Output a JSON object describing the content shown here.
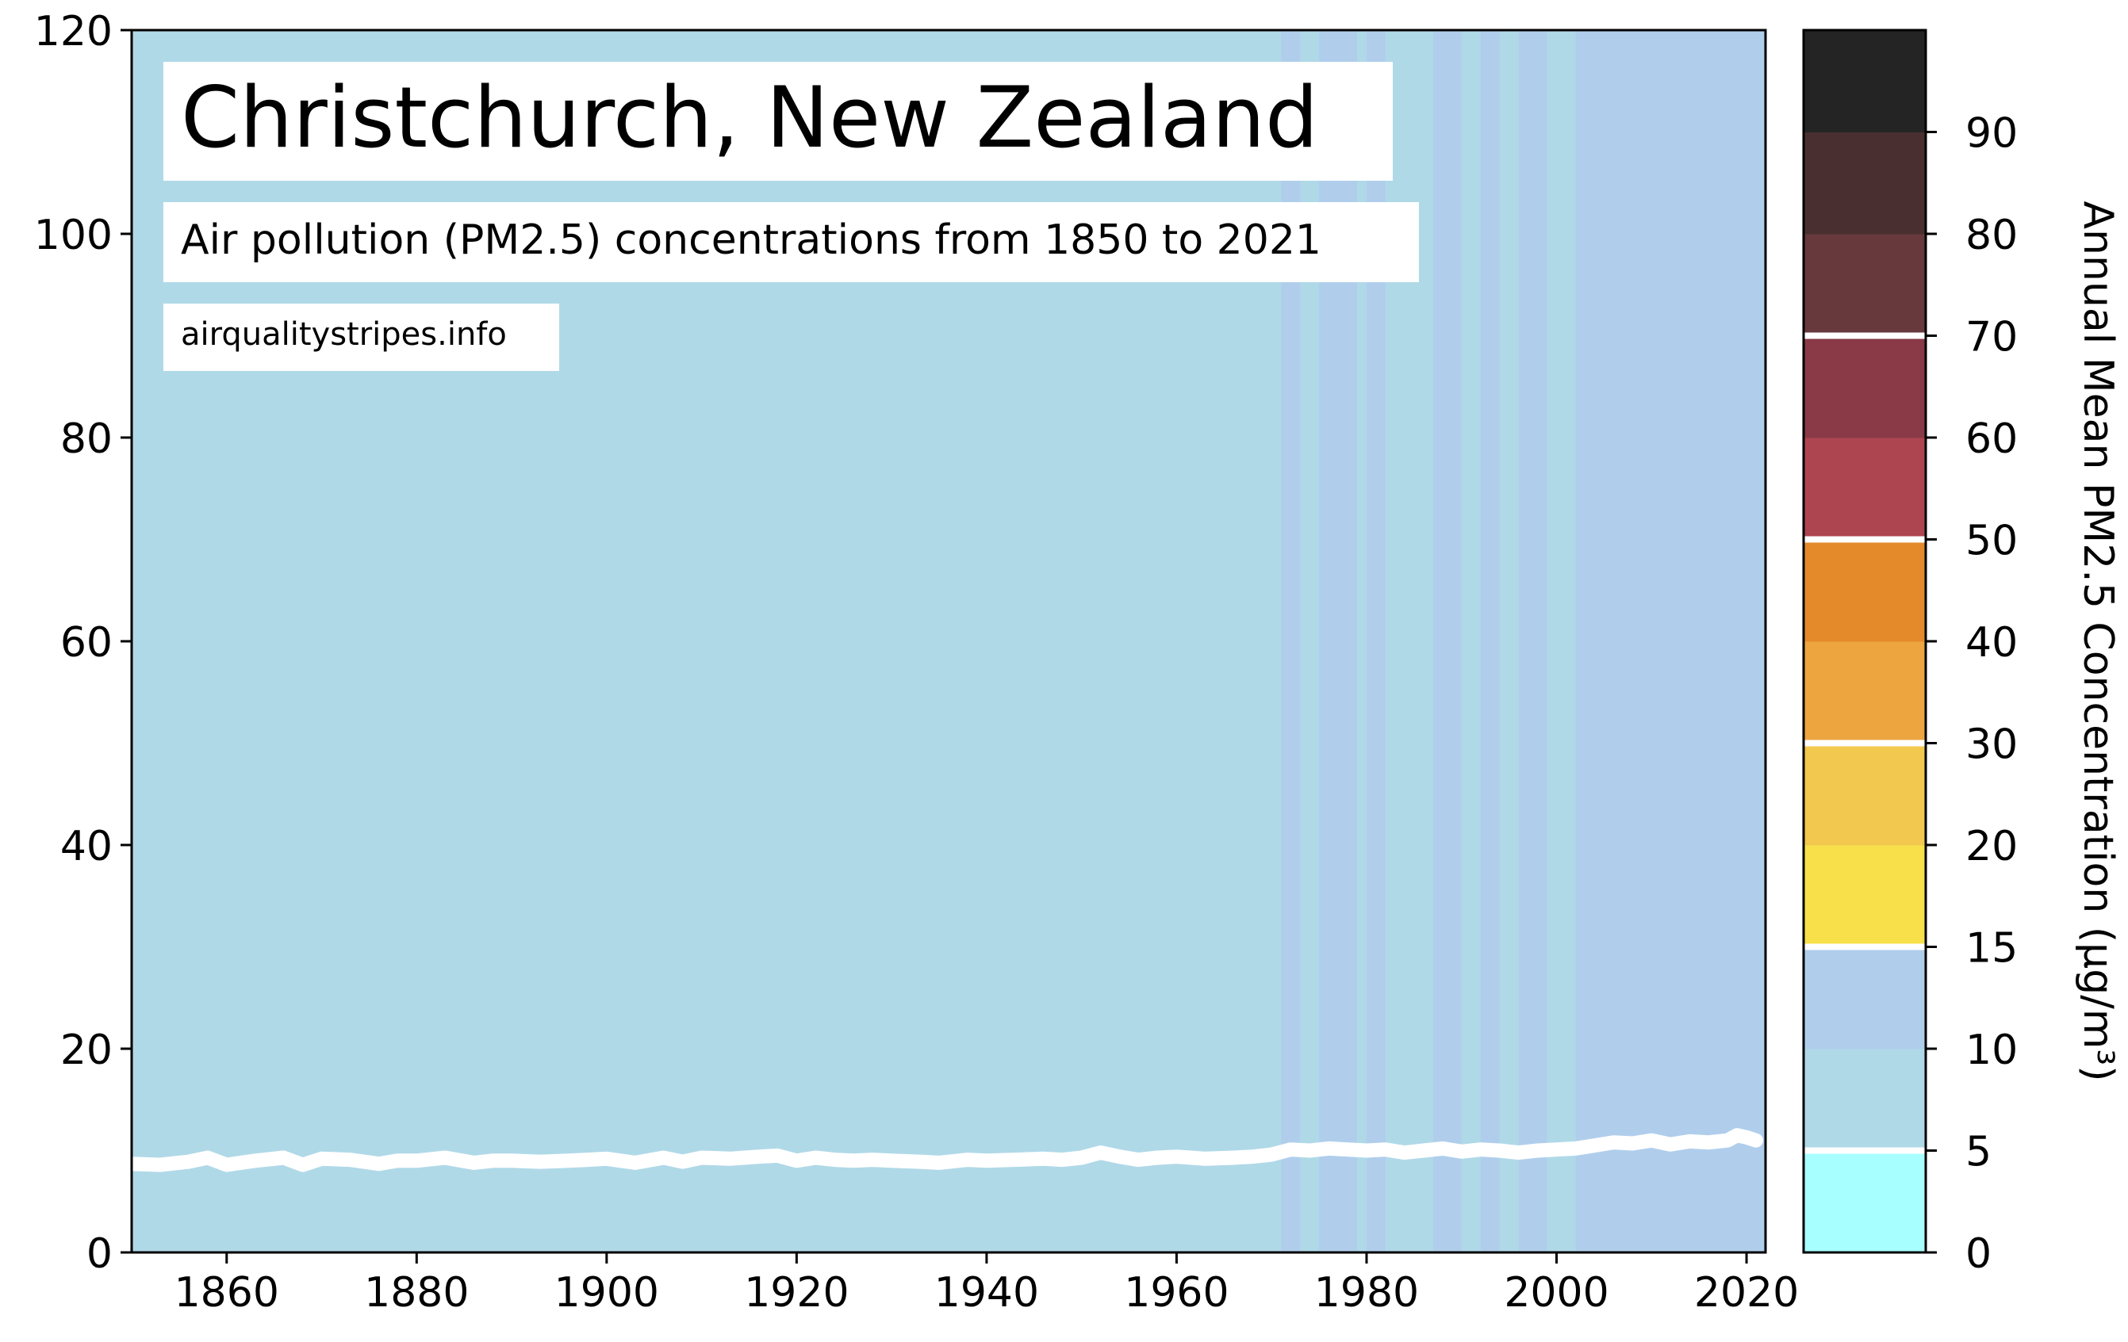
{
  "title": "Christchurch, New Zealand",
  "subtitle": "Air pollution (PM2.5) concentrations from 1850 to 2021",
  "source": "airqualitystripes.info",
  "colors": {
    "stripe_low": "#b0d9e8",
    "stripe_mid": "#b0ceec",
    "line": "#ffffff"
  },
  "chart_data": {
    "type": "line",
    "title": "Christchurch, New Zealand",
    "subtitle": "Air pollution (PM2.5) concentrations from 1850 to 2021",
    "xlabel": "",
    "ylabel": "",
    "xlim": [
      1850,
      2022
    ],
    "ylim": [
      0,
      120
    ],
    "x_ticks": [
      1860,
      1880,
      1900,
      1920,
      1940,
      1960,
      1980,
      2000,
      2020
    ],
    "y_ticks": [
      0,
      20,
      40,
      60,
      80,
      100,
      120
    ],
    "x_tick_labels": [
      "1860",
      "1880",
      "1900",
      "1920",
      "1940",
      "1960",
      "1980",
      "2000",
      "2020"
    ],
    "y_tick_labels": [
      "0",
      "20",
      "40",
      "60",
      "80",
      "100",
      "120"
    ],
    "series": [
      {
        "name": "Annual Mean PM2.5",
        "x": [
          1850,
          1853,
          1856,
          1858,
          1860,
          1863,
          1866,
          1868,
          1870,
          1873,
          1876,
          1878,
          1880,
          1883,
          1886,
          1888,
          1890,
          1893,
          1896,
          1898,
          1900,
          1903,
          1906,
          1908,
          1910,
          1913,
          1916,
          1918,
          1920,
          1922,
          1924,
          1926,
          1928,
          1930,
          1933,
          1935,
          1938,
          1940,
          1943,
          1946,
          1948,
          1950,
          1952,
          1954,
          1956,
          1958,
          1960,
          1963,
          1966,
          1968,
          1970,
          1972,
          1974,
          1976,
          1978,
          1980,
          1982,
          1984,
          1986,
          1988,
          1990,
          1992,
          1994,
          1996,
          1998,
          2000,
          2002,
          2004,
          2006,
          2008,
          2010,
          2012,
          2014,
          2016,
          2018,
          2019,
          2020,
          2021
        ],
        "values": [
          8.7,
          8.6,
          8.9,
          9.3,
          8.6,
          9.0,
          9.3,
          8.6,
          9.2,
          9.1,
          8.7,
          9.0,
          9.0,
          9.3,
          8.8,
          9.0,
          9.0,
          8.9,
          9.0,
          9.1,
          9.2,
          8.8,
          9.3,
          8.9,
          9.3,
          9.2,
          9.4,
          9.5,
          9.0,
          9.3,
          9.1,
          9.0,
          9.1,
          9.0,
          8.9,
          8.8,
          9.1,
          9.0,
          9.1,
          9.2,
          9.1,
          9.3,
          9.8,
          9.4,
          9.1,
          9.3,
          9.4,
          9.2,
          9.3,
          9.4,
          9.6,
          10.1,
          10.0,
          10.2,
          10.1,
          10.0,
          10.1,
          9.8,
          10.0,
          10.2,
          9.9,
          10.1,
          10.0,
          9.8,
          10.0,
          10.1,
          10.2,
          10.5,
          10.8,
          10.7,
          11.0,
          10.6,
          10.9,
          10.8,
          11.0,
          11.5,
          11.3,
          11.0
        ]
      }
    ],
    "stripes": [
      {
        "from": 1850,
        "to": 1971,
        "band": "5-10"
      },
      {
        "from": 1971,
        "to": 1973,
        "band": "10-15"
      },
      {
        "from": 1973,
        "to": 1975,
        "band": "5-10"
      },
      {
        "from": 1975,
        "to": 1979,
        "band": "10-15"
      },
      {
        "from": 1979,
        "to": 1980,
        "band": "5-10"
      },
      {
        "from": 1980,
        "to": 1982,
        "band": "10-15"
      },
      {
        "from": 1982,
        "to": 1987,
        "band": "5-10"
      },
      {
        "from": 1987,
        "to": 1990,
        "band": "10-15"
      },
      {
        "from": 1990,
        "to": 1992,
        "band": "5-10"
      },
      {
        "from": 1992,
        "to": 1994,
        "band": "10-15"
      },
      {
        "from": 1994,
        "to": 1996,
        "band": "5-10"
      },
      {
        "from": 1996,
        "to": 1999,
        "band": "10-15"
      },
      {
        "from": 1999,
        "to": 2002,
        "band": "5-10"
      },
      {
        "from": 2002,
        "to": 2022,
        "band": "10-15"
      }
    ],
    "colorbar": {
      "label": "Annual Mean PM2.5 Concentration (μg/m³)",
      "ticks": [
        0,
        5,
        10,
        15,
        20,
        30,
        40,
        50,
        60,
        70,
        80,
        90
      ],
      "tick_labels": [
        "0",
        "5",
        "10",
        "15",
        "20",
        "30",
        "40",
        "50",
        "60",
        "70",
        "80",
        "90"
      ],
      "bands": [
        {
          "from": 0,
          "to": 5,
          "color": "#a8ffff"
        },
        {
          "from": 5,
          "to": 10,
          "color": "#b0d9e8"
        },
        {
          "from": 10,
          "to": 15,
          "color": "#b0ceec"
        },
        {
          "from": 15,
          "to": 20,
          "color": "#f7e04a"
        },
        {
          "from": 20,
          "to": 30,
          "color": "#f2c84e"
        },
        {
          "from": 30,
          "to": 40,
          "color": "#eda540"
        },
        {
          "from": 40,
          "to": 50,
          "color": "#e58a2a"
        },
        {
          "from": 50,
          "to": 60,
          "color": "#ad4550"
        },
        {
          "from": 60,
          "to": 70,
          "color": "#893a46"
        },
        {
          "from": 70,
          "to": 80,
          "color": "#67393c"
        },
        {
          "from": 80,
          "to": 90,
          "color": "#4a2f30"
        },
        {
          "from": 90,
          "to": 100,
          "color": "#242424"
        }
      ],
      "separators": [
        5,
        15,
        30,
        50,
        70
      ]
    }
  }
}
